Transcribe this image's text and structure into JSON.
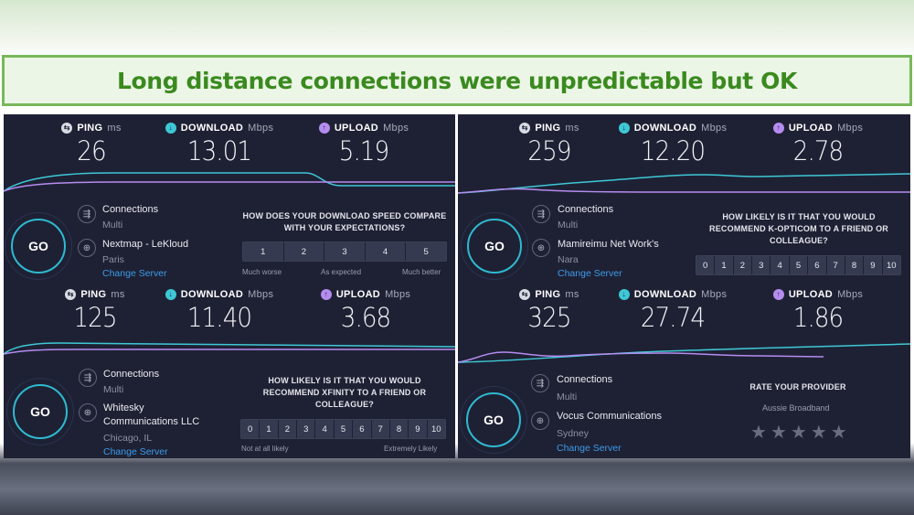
{
  "banner": {
    "title": "Long distance connections were unpredictable but OK"
  },
  "panels": [
    {
      "ping_label": "PING",
      "ping_unit": "ms",
      "ping": "26",
      "download_label": "DOWNLOAD",
      "download_unit": "Mbps",
      "download": "13.01",
      "upload_label": "UPLOAD",
      "upload_unit": "Mbps",
      "upload": "5.19",
      "go": "GO",
      "connections_label": "Connections",
      "connections_mode": "Multi",
      "server_name": "Nextmap - LeKloud",
      "server_location": "Paris",
      "change_server": "Change Server",
      "survey_question": "HOW DOES YOUR DOWNLOAD SPEED COMPARE WITH YOUR EXPECTATIONS?",
      "rating_options": [
        "1",
        "2",
        "3",
        "4",
        "5"
      ],
      "scale_left": "Much worse",
      "scale_mid": "As expected",
      "scale_right": "Much better"
    },
    {
      "ping_label": "PING",
      "ping_unit": "ms",
      "ping": "259",
      "download_label": "DOWNLOAD",
      "download_unit": "Mbps",
      "download": "12.20",
      "upload_label": "UPLOAD",
      "upload_unit": "Mbps",
      "upload": "2.78",
      "go": "GO",
      "connections_label": "Connections",
      "connections_mode": "Multi",
      "server_name": "Mamireimu Net Work's",
      "server_location": "Nara",
      "change_server": "Change Server",
      "survey_question": "HOW LIKELY IS IT THAT YOU WOULD RECOMMEND K-OPTICOM TO A FRIEND OR COLLEAGUE?",
      "rating_options": [
        "0",
        "1",
        "2",
        "3",
        "4",
        "5",
        "6",
        "7",
        "8",
        "9",
        "10"
      ]
    },
    {
      "ping_label": "PING",
      "ping_unit": "ms",
      "ping": "125",
      "download_label": "DOWNLOAD",
      "download_unit": "Mbps",
      "download": "11.40",
      "upload_label": "UPLOAD",
      "upload_unit": "Mbps",
      "upload": "3.68",
      "go": "GO",
      "connections_label": "Connections",
      "connections_mode": "Multi",
      "server_name_line1": "Whitesky",
      "server_name_line2": "Communications LLC",
      "server_location": "Chicago, IL",
      "change_server": "Change Server",
      "survey_question": "HOW LIKELY IS IT THAT YOU WOULD RECOMMEND XFINITY TO A FRIEND OR COLLEAGUE?",
      "rating_options": [
        "0",
        "1",
        "2",
        "3",
        "4",
        "5",
        "6",
        "7",
        "8",
        "9",
        "10"
      ],
      "scale_left": "Not at all likely",
      "scale_right": "Extremely Likely"
    },
    {
      "ping_label": "PING",
      "ping_unit": "ms",
      "ping": "325",
      "download_label": "DOWNLOAD",
      "download_unit": "Mbps",
      "download": "27.74",
      "upload_label": "UPLOAD",
      "upload_unit": "Mbps",
      "upload": "1.86",
      "go": "GO",
      "connections_label": "Connections",
      "connections_mode": "Multi",
      "server_name": "Vocus Communications",
      "server_location": "Sydney",
      "change_server": "Change Server",
      "survey_question": "RATE YOUR PROVIDER",
      "provider": "Aussie Broadband",
      "star_glyph": "★",
      "star_count": 5
    }
  ],
  "icons": {
    "ping": "⇆",
    "download": "↓",
    "upload": "↑",
    "connections": "⇶",
    "globe": "⊕"
  },
  "colors": {
    "download_line": "#3ec8d6",
    "upload_line": "#b58cf0",
    "go_ring": "#2fb9d1",
    "link": "#3c9be9",
    "banner_green": "#3a8a1f",
    "panel_bg": "#1e2134"
  }
}
